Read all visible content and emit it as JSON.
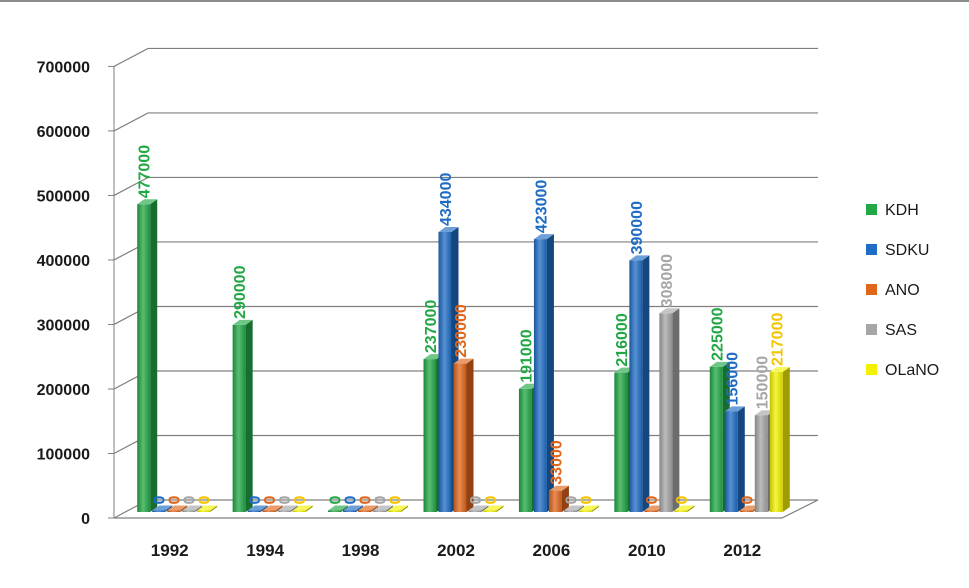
{
  "chart_data": {
    "type": "bar",
    "title": "",
    "xlabel": "",
    "ylabel": "",
    "categories": [
      "1992",
      "1994",
      "1998",
      "2002",
      "2006",
      "2010",
      "2012"
    ],
    "ylim": [
      0,
      700000
    ],
    "yticks": [
      0,
      100000,
      200000,
      300000,
      400000,
      500000,
      600000,
      700000
    ],
    "ytick_labels": [
      "0",
      "100000",
      "200000",
      "300000",
      "400000",
      "500000",
      "600000",
      "700000"
    ],
    "grid": true,
    "legend_position": "right",
    "series": [
      {
        "name": "KDH",
        "color": "#22a745",
        "values": [
          477000,
          290000,
          0,
          237000,
          191000,
          216000,
          225000
        ]
      },
      {
        "name": "SDKU",
        "color": "#1f6cc4",
        "values": [
          0,
          0,
          0,
          434000,
          423000,
          390000,
          156000
        ]
      },
      {
        "name": "ANO",
        "color": "#e0661c",
        "values": [
          0,
          0,
          0,
          230000,
          33000,
          0,
          0
        ]
      },
      {
        "name": "SAS",
        "color": "#a6a6a6",
        "values": [
          0,
          0,
          0,
          0,
          0,
          308000,
          150000
        ]
      },
      {
        "name": "OLaNO",
        "color": "#f2f200",
        "values": [
          0,
          0,
          0,
          0,
          0,
          0,
          217000
        ]
      }
    ],
    "label_colors": [
      "#22a745",
      "#1f6cc4",
      "#e0661c",
      "#a6a6a6",
      "#f5c400"
    ]
  }
}
